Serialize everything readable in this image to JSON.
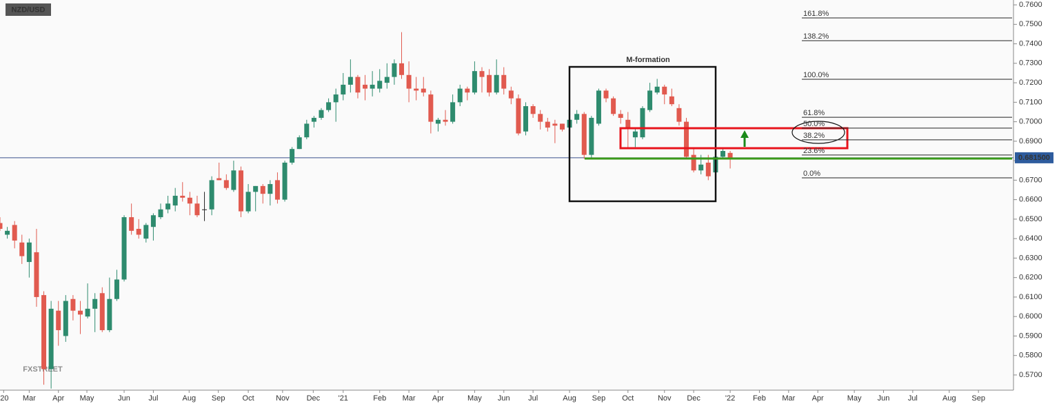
{
  "chart_data": {
    "type": "candlestick",
    "symbol": "NZD/USD",
    "title": "M-formation",
    "watermark": "FXSTREET",
    "up_color": "#2e8b6e",
    "down_color": "#e15a4f",
    "doji_color": "#222222",
    "open": [
      0.648,
      0.642,
      0.647,
      0.638,
      0.628,
      0.633,
      0.611,
      0.573,
      0.603,
      0.59,
      0.609,
      0.603,
      0.6,
      0.604,
      0.612,
      0.593,
      0.609,
      0.619,
      0.651,
      0.645,
      0.64,
      0.646,
      0.651,
      0.655,
      0.657,
      0.662,
      0.661,
      0.658,
      0.655,
      0.655,
      0.671,
      0.67,
      0.665,
      0.675,
      0.654,
      0.664,
      0.667,
      0.663,
      0.67,
      0.66,
      0.679,
      0.686,
      0.692,
      0.7,
      0.702,
      0.706,
      0.71,
      0.714,
      0.719,
      0.723,
      0.719,
      0.717,
      0.717,
      0.72,
      0.723,
      0.73,
      0.724,
      0.717,
      0.717,
      0.714,
      0.699,
      0.701,
      0.7,
      0.71,
      0.717,
      0.715,
      0.726,
      0.724,
      0.715,
      0.724,
      0.716,
      0.712,
      0.695,
      0.708,
      0.704,
      0.7,
      0.699,
      0.699,
      0.697,
      0.701,
      0.704,
      0.683,
      0.699,
      0.716,
      0.712,
      0.704,
      0.701,
      0.692,
      0.692,
      0.706,
      0.715,
      0.718,
      0.713,
      0.707,
      0.7,
      0.683,
      0.675,
      0.679,
      0.674,
      0.682,
      0.684
    ],
    "high": [
      0.651,
      0.646,
      0.649,
      0.642,
      0.64,
      0.645,
      0.613,
      0.608,
      0.608,
      0.611,
      0.611,
      0.608,
      0.617,
      0.612,
      0.615,
      0.62,
      0.624,
      0.652,
      0.658,
      0.65,
      0.648,
      0.653,
      0.658,
      0.662,
      0.666,
      0.669,
      0.664,
      0.662,
      0.664,
      0.672,
      0.679,
      0.673,
      0.68,
      0.677,
      0.668,
      0.667,
      0.668,
      0.67,
      0.674,
      0.68,
      0.687,
      0.693,
      0.701,
      0.703,
      0.707,
      0.712,
      0.717,
      0.725,
      0.732,
      0.724,
      0.724,
      0.726,
      0.727,
      0.73,
      0.732,
      0.746,
      0.731,
      0.723,
      0.723,
      0.716,
      0.702,
      0.706,
      0.714,
      0.719,
      0.718,
      0.731,
      0.728,
      0.727,
      0.732,
      0.728,
      0.718,
      0.714,
      0.71,
      0.709,
      0.706,
      0.702,
      0.701,
      0.699,
      0.702,
      0.706,
      0.705,
      0.703,
      0.717,
      0.717,
      0.713,
      0.706,
      0.705,
      0.697,
      0.708,
      0.72,
      0.722,
      0.719,
      0.717,
      0.709,
      0.702,
      0.686,
      0.683,
      0.683,
      0.683,
      0.686,
      0.685
    ],
    "low": [
      0.644,
      0.64,
      0.635,
      0.627,
      0.62,
      0.605,
      0.565,
      0.563,
      0.585,
      0.587,
      0.598,
      0.591,
      0.599,
      0.592,
      0.592,
      0.592,
      0.608,
      0.618,
      0.642,
      0.64,
      0.638,
      0.639,
      0.65,
      0.653,
      0.654,
      0.659,
      0.652,
      0.651,
      0.649,
      0.652,
      0.67,
      0.665,
      0.664,
      0.651,
      0.653,
      0.654,
      0.658,
      0.657,
      0.658,
      0.659,
      0.678,
      0.686,
      0.691,
      0.697,
      0.701,
      0.705,
      0.7,
      0.711,
      0.715,
      0.712,
      0.711,
      0.713,
      0.715,
      0.717,
      0.719,
      0.722,
      0.71,
      0.711,
      0.713,
      0.694,
      0.695,
      0.698,
      0.699,
      0.708,
      0.711,
      0.714,
      0.715,
      0.713,
      0.714,
      0.714,
      0.709,
      0.693,
      0.693,
      0.702,
      0.696,
      0.695,
      0.689,
      0.695,
      0.687,
      0.699,
      0.681,
      0.681,
      0.698,
      0.71,
      0.703,
      0.699,
      0.686,
      0.687,
      0.691,
      0.705,
      0.714,
      0.709,
      0.708,
      0.698,
      0.681,
      0.674,
      0.673,
      0.67,
      0.671,
      0.681,
      0.676
    ],
    "close": [
      0.645,
      0.644,
      0.639,
      0.631,
      0.638,
      0.61,
      0.573,
      0.604,
      0.593,
      0.608,
      0.603,
      0.601,
      0.604,
      0.609,
      0.593,
      0.609,
      0.619,
      0.651,
      0.644,
      0.642,
      0.647,
      0.652,
      0.655,
      0.658,
      0.662,
      0.661,
      0.658,
      0.652,
      0.655,
      0.67,
      0.67,
      0.666,
      0.675,
      0.654,
      0.664,
      0.667,
      0.663,
      0.668,
      0.66,
      0.679,
      0.686,
      0.692,
      0.699,
      0.702,
      0.706,
      0.71,
      0.714,
      0.719,
      0.723,
      0.715,
      0.717,
      0.719,
      0.721,
      0.723,
      0.73,
      0.724,
      0.717,
      0.716,
      0.715,
      0.7,
      0.701,
      0.7,
      0.71,
      0.717,
      0.715,
      0.726,
      0.723,
      0.715,
      0.724,
      0.717,
      0.712,
      0.694,
      0.708,
      0.704,
      0.7,
      0.697,
      0.698,
      0.696,
      0.701,
      0.704,
      0.683,
      0.702,
      0.716,
      0.712,
      0.704,
      0.702,
      0.697,
      0.695,
      0.707,
      0.716,
      0.718,
      0.714,
      0.709,
      0.7,
      0.682,
      0.675,
      0.678,
      0.672,
      0.682,
      0.685,
      0.6815
    ],
    "xlim": [
      0,
      138.8
    ],
    "xticks": [
      {
        "value": 0.5,
        "label": "'20"
      },
      {
        "value": 4,
        "label": "Mar"
      },
      {
        "value": 8,
        "label": "Apr"
      },
      {
        "value": 11.9,
        "label": "May"
      },
      {
        "value": 17,
        "label": "Jun"
      },
      {
        "value": 21,
        "label": "Jul"
      },
      {
        "value": 25.9,
        "label": "Aug"
      },
      {
        "value": 29.9,
        "label": "Sep"
      },
      {
        "value": 34,
        "label": "Oct"
      },
      {
        "value": 38.7,
        "label": "Nov"
      },
      {
        "value": 42.9,
        "label": "Dec"
      },
      {
        "value": 47,
        "label": "'21"
      },
      {
        "value": 52,
        "label": "Feb"
      },
      {
        "value": 56,
        "label": "Mar"
      },
      {
        "value": 60,
        "label": "Apr"
      },
      {
        "value": 65,
        "label": "May"
      },
      {
        "value": 69,
        "label": "Jun"
      },
      {
        "value": 73,
        "label": "Jul"
      },
      {
        "value": 78,
        "label": "Aug"
      },
      {
        "value": 82,
        "label": "Sep"
      },
      {
        "value": 86,
        "label": "Oct"
      },
      {
        "value": 91,
        "label": "Nov"
      },
      {
        "value": 95,
        "label": "Dec"
      },
      {
        "value": 100,
        "label": "'22"
      },
      {
        "value": 104,
        "label": "Feb"
      },
      {
        "value": 108,
        "label": "Mar"
      },
      {
        "value": 112,
        "label": "Apr"
      },
      {
        "value": 117,
        "label": "May"
      },
      {
        "value": 121,
        "label": "Jun"
      },
      {
        "value": 125,
        "label": "Jul"
      },
      {
        "value": 130,
        "label": "Aug"
      },
      {
        "value": 134,
        "label": "Sep"
      }
    ],
    "ylim": [
      0.5622,
      0.7625
    ],
    "yticks": [
      {
        "value": 0.57,
        "label": "0.5700"
      },
      {
        "value": 0.58,
        "label": "0.5800"
      },
      {
        "value": 0.59,
        "label": "0.5900"
      },
      {
        "value": 0.6,
        "label": "0.6000"
      },
      {
        "value": 0.61,
        "label": "0.6100"
      },
      {
        "value": 0.62,
        "label": "0.6200"
      },
      {
        "value": 0.63,
        "label": "0.6300"
      },
      {
        "value": 0.64,
        "label": "0.6400"
      },
      {
        "value": 0.65,
        "label": "0.6500"
      },
      {
        "value": 0.66,
        "label": "0.6600"
      },
      {
        "value": 0.67,
        "label": "0.6700"
      },
      {
        "value": 0.68,
        "label": "0.6800"
      },
      {
        "value": 0.69,
        "label": "0.6900"
      },
      {
        "value": 0.7,
        "label": "0.7000"
      },
      {
        "value": 0.71,
        "label": "0.7100"
      },
      {
        "value": 0.72,
        "label": "0.7200"
      },
      {
        "value": 0.73,
        "label": "0.7300"
      },
      {
        "value": 0.74,
        "label": "0.7400"
      },
      {
        "value": 0.75,
        "label": "0.7500"
      },
      {
        "value": 0.76,
        "label": "0.7600"
      }
    ],
    "last_price": {
      "value": 0.6815,
      "label": "0.681500"
    },
    "fib_levels": [
      {
        "value": 0.7533,
        "label": "161.8%"
      },
      {
        "value": 0.7416,
        "label": "138.2%"
      },
      {
        "value": 0.7218,
        "label": "100.0%"
      },
      {
        "value": 0.7023,
        "label": "61.8%"
      },
      {
        "value": 0.6967,
        "label": "50.0%"
      },
      {
        "value": 0.6907,
        "label": "38.2%"
      },
      {
        "value": 0.6829,
        "label": "23.6%"
      },
      {
        "value": 0.6712,
        "label": "0.0%"
      }
    ]
  }
}
